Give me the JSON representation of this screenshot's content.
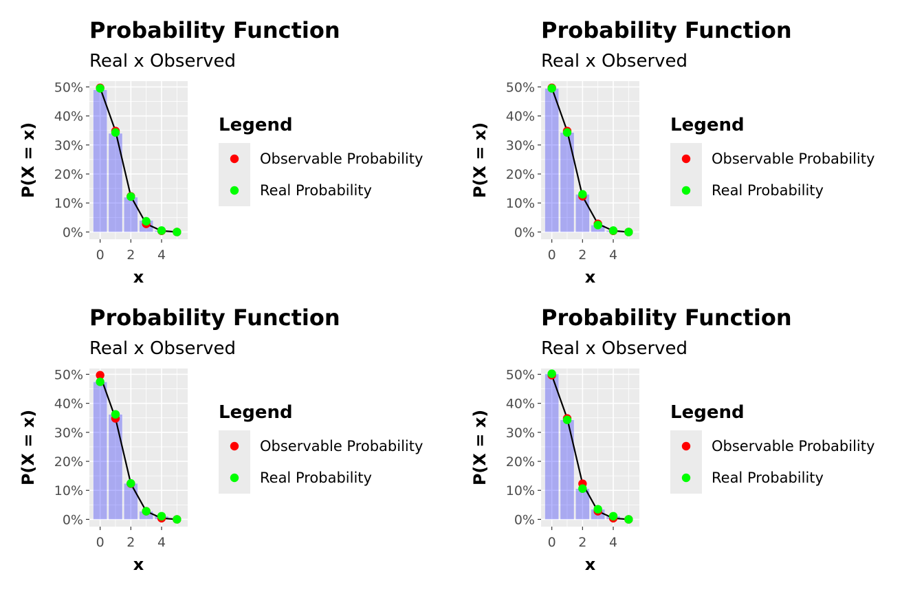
{
  "chart_data": [
    {
      "type": "bar",
      "title": "Probability Function",
      "subtitle": "Real x Observed",
      "xlabel": "x",
      "ylabel": "P(X = x)",
      "x": [
        0,
        1,
        2,
        3,
        4,
        5
      ],
      "xlim": [
        -0.7,
        5.7
      ],
      "ylim": [
        -0.025,
        0.52
      ],
      "xticks": [
        0,
        2,
        4
      ],
      "yticks": [
        0,
        0.1,
        0.2,
        0.3,
        0.4,
        0.5
      ],
      "ytick_labels": [
        "0%",
        "10%",
        "20%",
        "30%",
        "40%",
        "50%"
      ],
      "bars": [
        0.49,
        0.34,
        0.12,
        0.04,
        0.005,
        0.0
      ],
      "series": [
        {
          "name": "Observable Probability",
          "color": "#ff0000",
          "values": [
            0.497,
            0.348,
            0.123,
            0.028,
            0.004,
            0.0
          ]
        },
        {
          "name": "Real Probability",
          "color": "#00ff00",
          "values": [
            0.495,
            0.343,
            0.122,
            0.037,
            0.005,
            0.0
          ]
        }
      ],
      "legend": {
        "title": "Legend",
        "position": "right"
      },
      "grid": true
    },
    {
      "type": "bar",
      "title": "Probability Function",
      "subtitle": "Real x Observed",
      "xlabel": "x",
      "ylabel": "P(X = x)",
      "x": [
        0,
        1,
        2,
        3,
        4,
        5
      ],
      "xlim": [
        -0.7,
        5.7
      ],
      "ylim": [
        -0.025,
        0.52
      ],
      "xticks": [
        0,
        2,
        4
      ],
      "yticks": [
        0,
        0.1,
        0.2,
        0.3,
        0.4,
        0.5
      ],
      "ytick_labels": [
        "0%",
        "10%",
        "20%",
        "30%",
        "40%",
        "50%"
      ],
      "bars": [
        0.495,
        0.343,
        0.13,
        0.024,
        0.005,
        0.0
      ],
      "series": [
        {
          "name": "Observable Probability",
          "color": "#ff0000",
          "values": [
            0.497,
            0.348,
            0.123,
            0.028,
            0.004,
            0.0
          ]
        },
        {
          "name": "Real Probability",
          "color": "#00ff00",
          "values": [
            0.495,
            0.343,
            0.13,
            0.024,
            0.005,
            0.0
          ]
        }
      ],
      "legend": {
        "title": "Legend",
        "position": "right"
      },
      "grid": true
    },
    {
      "type": "bar",
      "title": "Probability Function",
      "subtitle": "Real x Observed",
      "xlabel": "x",
      "ylabel": "P(X = x)",
      "x": [
        0,
        1,
        2,
        3,
        4,
        5
      ],
      "xlim": [
        -0.7,
        5.7
      ],
      "ylim": [
        -0.025,
        0.52
      ],
      "xticks": [
        0,
        2,
        4
      ],
      "yticks": [
        0,
        0.1,
        0.2,
        0.3,
        0.4,
        0.5
      ],
      "ytick_labels": [
        "0%",
        "10%",
        "20%",
        "30%",
        "40%",
        "50%"
      ],
      "bars": [
        0.474,
        0.362,
        0.124,
        0.028,
        0.011,
        0.0
      ],
      "series": [
        {
          "name": "Observable Probability",
          "color": "#ff0000",
          "values": [
            0.497,
            0.348,
            0.123,
            0.028,
            0.004,
            0.0
          ]
        },
        {
          "name": "Real Probability",
          "color": "#00ff00",
          "values": [
            0.474,
            0.362,
            0.124,
            0.028,
            0.011,
            0.0
          ]
        }
      ],
      "legend": {
        "title": "Legend",
        "position": "right"
      },
      "grid": true
    },
    {
      "type": "bar",
      "title": "Probability Function",
      "subtitle": "Real x Observed",
      "xlabel": "x",
      "ylabel": "P(X = x)",
      "x": [
        0,
        1,
        2,
        3,
        4,
        5
      ],
      "xlim": [
        -0.7,
        5.7
      ],
      "ylim": [
        -0.025,
        0.52
      ],
      "xticks": [
        0,
        2,
        4
      ],
      "yticks": [
        0,
        0.1,
        0.2,
        0.3,
        0.4,
        0.5
      ],
      "ytick_labels": [
        "0%",
        "10%",
        "20%",
        "30%",
        "40%",
        "50%"
      ],
      "bars": [
        0.502,
        0.343,
        0.106,
        0.035,
        0.011,
        0.0
      ],
      "series": [
        {
          "name": "Observable Probability",
          "color": "#ff0000",
          "values": [
            0.497,
            0.348,
            0.123,
            0.028,
            0.004,
            0.0
          ]
        },
        {
          "name": "Real Probability",
          "color": "#00ff00",
          "values": [
            0.502,
            0.343,
            0.106,
            0.035,
            0.011,
            0.0
          ]
        }
      ],
      "legend": {
        "title": "Legend",
        "position": "right"
      },
      "grid": true
    }
  ]
}
